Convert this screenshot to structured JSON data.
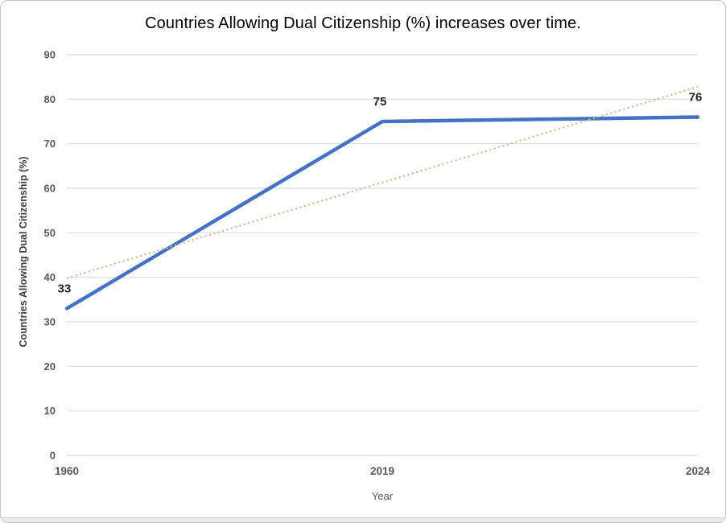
{
  "chart": {
    "title": "Countries Allowing Dual Citizenship (%) increases over time.",
    "x_axis_title": "Year",
    "y_axis_title": "Countries Allowing Dual Citizenship (%)"
  },
  "chart_data": {
    "type": "line",
    "title": "Countries Allowing Dual Citizenship (%) increases over time.",
    "xlabel": "Year",
    "ylabel": "Countries Allowing Dual Citizenship (%)",
    "categories": [
      "1960",
      "2019",
      "2024"
    ],
    "series": [
      {
        "name": "Countries Allowing Dual Citizenship (%)",
        "values": [
          33,
          75,
          76
        ],
        "color": "#4472C4"
      }
    ],
    "data_labels": [
      "33",
      "75",
      "76"
    ],
    "trendline": {
      "type": "linear",
      "style": "dotted",
      "start_value": 39.8,
      "end_value": 82.8,
      "color": "#C8BE9B"
    },
    "y_ticks": [
      0,
      10,
      20,
      30,
      40,
      50,
      60,
      70,
      80,
      90
    ],
    "ylim": [
      0,
      90
    ],
    "grid": true,
    "legend": false,
    "gridline_color": "#D9D9D9",
    "tick_label_color": "#595959",
    "data_label_color": "#262626"
  }
}
